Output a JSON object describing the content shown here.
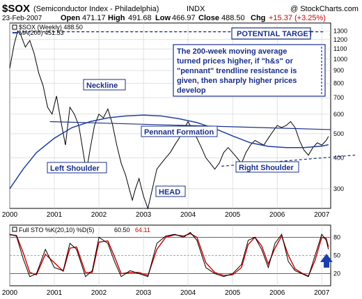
{
  "header": {
    "symbol": "$SOX",
    "name": "(Semiconductor Index - Philadelphia)",
    "exchange": "INDX",
    "copyright": "@ StockCharts.com",
    "date": "23-Feb-2007",
    "open_label": "Open",
    "open": "471.17",
    "high_label": "High",
    "high": "491.68",
    "low_label": "Low",
    "low": "466.97",
    "close_label": "Close",
    "close": "488.50",
    "chg_label": "Chg",
    "chg": "+15.37 (+3.25%)",
    "chg_color": "#cc0000"
  },
  "price_legend": {
    "series": "$SOX (Weekly) 488.50",
    "ma": "MA(200) 451.53"
  },
  "annotations": {
    "potential_target": "POTENTIAL TARGET",
    "note": [
      "The 200-week moving average",
      "turned prices higher, if \"h&s\" or",
      "\"pennant\" trendline resistance is",
      "given, then sharply higher prices",
      "develop"
    ],
    "neckline": "Neckline",
    "left_shoulder": "Left Shoulder",
    "head": "HEAD",
    "pennant": "Pennant Formation",
    "right_shoulder": "Right Shoulder"
  },
  "sto_legend": {
    "label": "Full STO %K(20,10) %D(5)",
    "k": "60.50",
    "d": "64.11",
    "d_color": "#cc0000"
  },
  "colors": {
    "price": "#000000",
    "ma": "#1f3fa0",
    "annotation_blue": "#1a2f8a",
    "sto_k": "#000000",
    "sto_d": "#cc0000",
    "target_line": "#1a2f8a"
  },
  "chart_data": [
    {
      "type": "line",
      "title": "$SOX (Semiconductor Index - Philadelphia)",
      "scale": "log",
      "ylim": [
        250,
        1400
      ],
      "y_ticks": [
        1300,
        1200,
        1100,
        1000,
        900,
        800,
        700,
        600,
        500,
        400,
        300
      ],
      "x_ticks": [
        "2000",
        "2001",
        "2002",
        "2003",
        "2004",
        "2005",
        "2006",
        "2007"
      ],
      "x_range": [
        2000.0,
        2007.2
      ],
      "series": [
        {
          "name": "$SOX (Weekly)",
          "x": [
            2000.0,
            2000.1,
            2000.18,
            2000.25,
            2000.35,
            2000.45,
            2000.55,
            2000.65,
            2000.75,
            2000.85,
            2000.95,
            2001.05,
            2001.15,
            2001.25,
            2001.35,
            2001.45,
            2001.55,
            2001.65,
            2001.72,
            2001.8,
            2001.9,
            2002.0,
            2002.1,
            2002.2,
            2002.3,
            2002.4,
            2002.5,
            2002.6,
            2002.68,
            2002.75,
            2002.82,
            2002.9,
            2003.0,
            2003.1,
            2003.2,
            2003.3,
            2003.4,
            2003.5,
            2003.6,
            2003.7,
            2003.8,
            2003.9,
            2004.0,
            2004.1,
            2004.2,
            2004.3,
            2004.4,
            2004.5,
            2004.6,
            2004.7,
            2004.8,
            2004.9,
            2005.0,
            2005.1,
            2005.2,
            2005.3,
            2005.4,
            2005.5,
            2005.6,
            2005.7,
            2005.8,
            2005.9,
            2006.0,
            2006.1,
            2006.2,
            2006.3,
            2006.4,
            2006.5,
            2006.6,
            2006.7,
            2006.8,
            2006.9,
            2007.0,
            2007.1,
            2007.15
          ],
          "y": [
            920,
            1150,
            1300,
            1250,
            1120,
            1190,
            1050,
            880,
            780,
            640,
            600,
            710,
            560,
            450,
            640,
            600,
            540,
            420,
            350,
            430,
            540,
            600,
            580,
            630,
            550,
            450,
            380,
            340,
            300,
            270,
            300,
            330,
            280,
            250,
            300,
            360,
            380,
            400,
            420,
            450,
            480,
            520,
            560,
            520,
            480,
            440,
            400,
            380,
            360,
            380,
            420,
            440,
            420,
            400,
            380,
            420,
            450,
            470,
            460,
            450,
            480,
            510,
            540,
            530,
            540,
            560,
            530,
            470,
            430,
            410,
            440,
            460,
            450,
            470,
            488
          ]
        },
        {
          "name": "MA(200)",
          "x": [
            2000.0,
            2000.3,
            2000.6,
            2001.0,
            2001.4,
            2001.8,
            2002.2,
            2002.6,
            2003.0,
            2003.4,
            2003.8,
            2004.2,
            2004.6,
            2005.0,
            2005.4,
            2005.8,
            2006.2,
            2006.6,
            2007.0,
            2007.15
          ],
          "y": [
            300,
            360,
            420,
            480,
            530,
            560,
            580,
            590,
            595,
            590,
            575,
            555,
            525,
            490,
            460,
            445,
            440,
            440,
            446,
            452
          ]
        }
      ]
    },
    {
      "type": "line",
      "title": "Full STO %K(20,10) %D(5)",
      "ylim": [
        0,
        100
      ],
      "y_ticks": [
        80,
        50,
        20
      ],
      "x_ticks": [
        "2000",
        "2001",
        "2002",
        "2003",
        "2004",
        "2005",
        "2006",
        "2007"
      ],
      "x_range": [
        2000.0,
        2007.2
      ],
      "series": [
        {
          "name": "%K",
          "x": [
            2000.0,
            2000.15,
            2000.3,
            2000.45,
            2000.6,
            2000.8,
            2001.0,
            2001.2,
            2001.35,
            2001.5,
            2001.7,
            2001.85,
            2002.0,
            2002.2,
            2002.35,
            2002.5,
            2002.7,
            2002.9,
            2003.1,
            2003.3,
            2003.5,
            2003.7,
            2003.9,
            2004.05,
            2004.2,
            2004.4,
            2004.6,
            2004.8,
            2005.0,
            2005.2,
            2005.35,
            2005.5,
            2005.65,
            2005.8,
            2005.95,
            2006.1,
            2006.25,
            2006.4,
            2006.55,
            2006.7,
            2006.85,
            2007.0,
            2007.1,
            2007.15
          ],
          "y": [
            85,
            82,
            45,
            15,
            20,
            60,
            30,
            25,
            70,
            60,
            15,
            25,
            80,
            70,
            40,
            15,
            25,
            20,
            15,
            70,
            82,
            85,
            80,
            88,
            75,
            30,
            20,
            15,
            20,
            35,
            75,
            80,
            60,
            30,
            70,
            85,
            40,
            25,
            20,
            15,
            50,
            85,
            75,
            60
          ]
        },
        {
          "name": "%D",
          "x": [
            2000.0,
            2000.15,
            2000.3,
            2000.45,
            2000.6,
            2000.8,
            2001.0,
            2001.2,
            2001.35,
            2001.5,
            2001.7,
            2001.85,
            2002.0,
            2002.2,
            2002.35,
            2002.5,
            2002.7,
            2002.9,
            2003.1,
            2003.3,
            2003.5,
            2003.7,
            2003.9,
            2004.05,
            2004.2,
            2004.4,
            2004.6,
            2004.8,
            2005.0,
            2005.2,
            2005.35,
            2005.5,
            2005.65,
            2005.8,
            2005.95,
            2006.1,
            2006.25,
            2006.4,
            2006.55,
            2006.7,
            2006.85,
            2007.0,
            2007.1,
            2007.15
          ],
          "y": [
            84,
            83,
            55,
            22,
            18,
            52,
            38,
            24,
            62,
            64,
            22,
            22,
            72,
            74,
            48,
            20,
            22,
            22,
            17,
            60,
            80,
            84,
            82,
            86,
            80,
            38,
            22,
            17,
            18,
            30,
            68,
            80,
            66,
            36,
            62,
            82,
            50,
            28,
            21,
            16,
            42,
            80,
            78,
            64
          ]
        }
      ]
    }
  ]
}
